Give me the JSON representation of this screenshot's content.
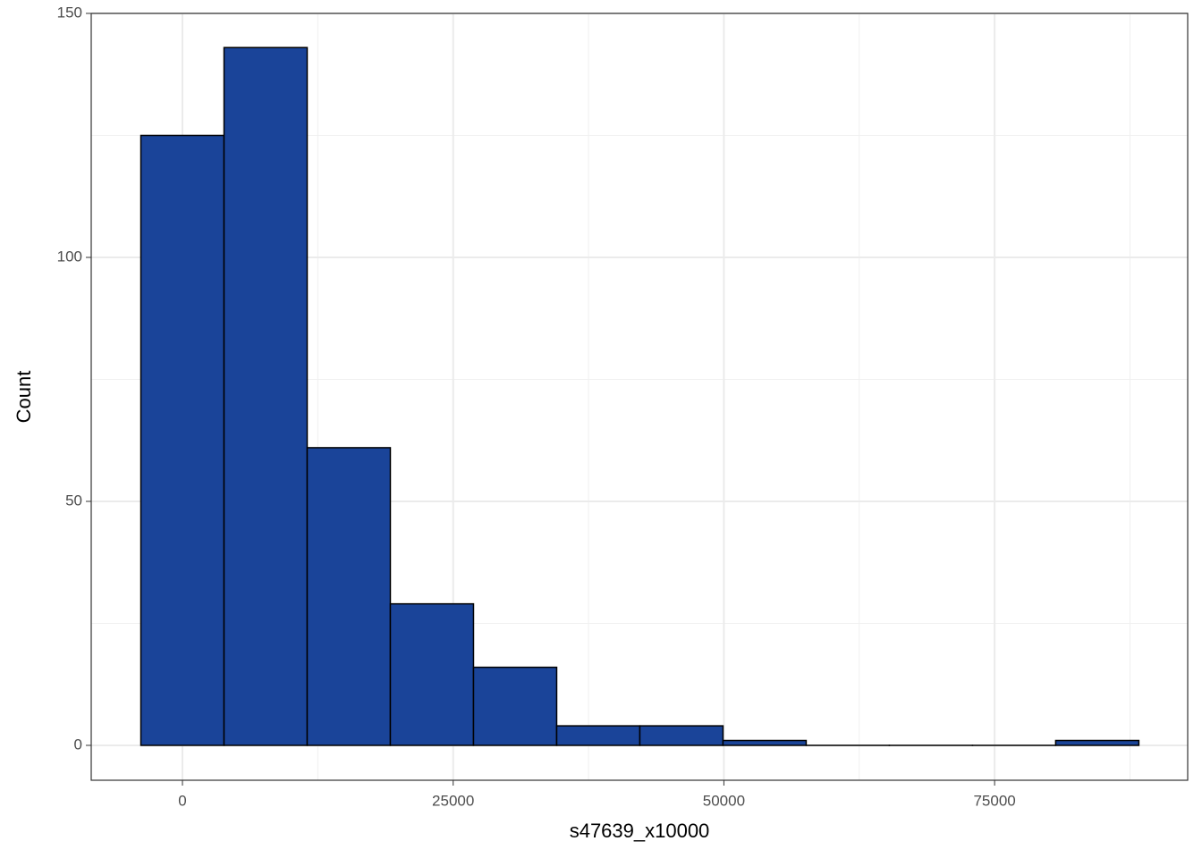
{
  "chart_data": {
    "type": "histogram",
    "x_label": "s47639_x10000",
    "y_label": "Count",
    "bins": [
      -3840,
      3840,
      11520,
      19200,
      26880,
      34560,
      42240,
      49920,
      57600,
      65280,
      72960,
      80640,
      88320
    ],
    "values": [
      125,
      143,
      61,
      29,
      16,
      4,
      4,
      1,
      0,
      0,
      0,
      1
    ],
    "color": "#1a4499",
    "edge_color": "#000000",
    "xlim": [
      -8424,
      92831
    ],
    "ylim": [
      -7.15,
      150
    ],
    "xticks": [
      0,
      25000,
      50000,
      75000
    ],
    "yticks": [
      0,
      50,
      100,
      150
    ],
    "x_minor_grid": [
      12500,
      37500,
      62500,
      87500
    ],
    "y_minor_grid": [
      25,
      75,
      125
    ],
    "grid": true
  }
}
